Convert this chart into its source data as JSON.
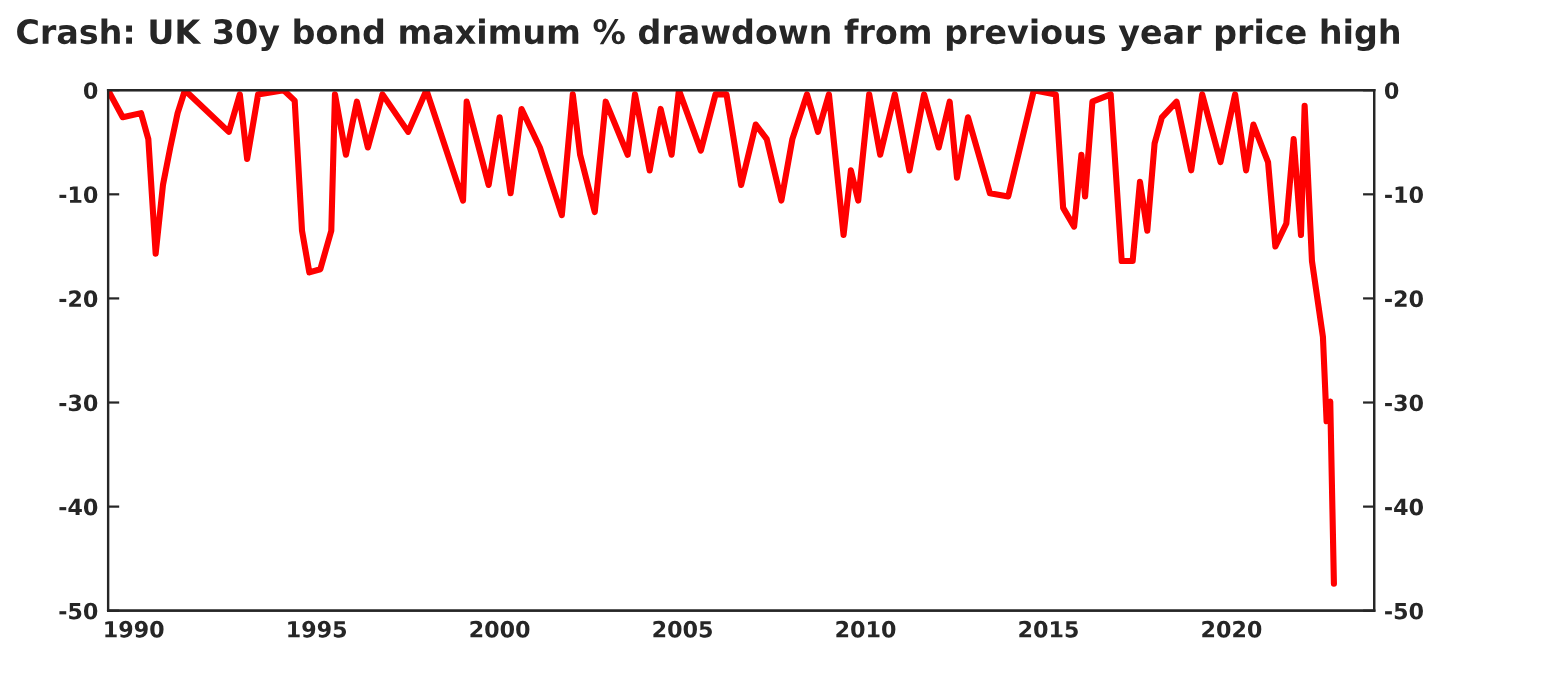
{
  "chart_data": {
    "type": "line",
    "title": "Crash: UK 30y bond maximum % drawdown from previous year price high",
    "xlim": [
      1989.3,
      2023.9
    ],
    "xticks": [
      1990,
      1995,
      2000,
      2005,
      2010,
      2015,
      2020
    ],
    "ylim": [
      -50,
      0
    ],
    "yticks": [
      0,
      -10,
      -20,
      -30,
      -40,
      -50
    ],
    "y2lim": [
      -50,
      0
    ],
    "y2ticks": [
      0,
      -10,
      -20,
      -30,
      -40,
      -50
    ],
    "grid": false,
    "ref_lines": [
      {
        "axis": "y",
        "value": 0,
        "color": "#b0b0b0"
      }
    ],
    "series": [
      {
        "color": "#ff0000",
        "x": [
          1989.3,
          1989.7,
          1990.2,
          1990.4,
          1990.6,
          1990.8,
          1991.0,
          1991.2,
          1991.4,
          1992.6,
          1992.9,
          1993.1,
          1993.4,
          1994.1,
          1994.4,
          1994.6,
          1994.8,
          1995.1,
          1995.4,
          1995.5,
          1995.8,
          1996.1,
          1996.4,
          1996.8,
          1997.5,
          1998.0,
          1999.0,
          1999.1,
          1999.7,
          2000.0,
          2000.3,
          2000.6,
          2001.1,
          2001.7,
          2002.0,
          2002.2,
          2002.6,
          2002.9,
          2003.5,
          2003.7,
          2004.1,
          2004.4,
          2004.7,
          2004.9,
          2005.5,
          2005.9,
          2006.2,
          2006.6,
          2007.0,
          2007.3,
          2007.7,
          2008.0,
          2008.4,
          2008.7,
          2009.0,
          2009.4,
          2009.6,
          2009.8,
          2010.1,
          2010.4,
          2010.8,
          2011.2,
          2011.6,
          2012.0,
          2012.3,
          2012.5,
          2012.8,
          2013.4,
          2013.9,
          2014.6,
          2015.2,
          2015.4,
          2015.7,
          2015.9,
          2016.0,
          2016.2,
          2016.7,
          2017.0,
          2017.3,
          2017.5,
          2017.7,
          2017.9,
          2018.1,
          2018.5,
          2018.9,
          2019.2,
          2019.7,
          2020.1,
          2020.4,
          2020.6,
          2021.0,
          2021.2,
          2021.5,
          2021.7,
          2021.9,
          2022.0,
          2022.2,
          2022.5,
          2022.6,
          2022.7,
          2022.8
        ],
        "values": [
          0,
          -2.6,
          -2.2,
          -4.7,
          -15.7,
          -9.1,
          -5.5,
          -2.2,
          0,
          -4,
          -0.4,
          -6.6,
          -0.4,
          0,
          -1,
          -13.5,
          -17.5,
          -17.2,
          -13.5,
          -0.4,
          -6.2,
          -1.1,
          -5.5,
          -0.4,
          -4,
          0,
          -10.6,
          -1.1,
          -9.1,
          -2.6,
          -9.9,
          -1.8,
          -5.5,
          -12,
          -0.4,
          -6.2,
          -11.7,
          -1.1,
          -6.2,
          -0.4,
          -7.7,
          -1.8,
          -6.2,
          0,
          -5.8,
          -0.4,
          -0.4,
          -9.1,
          -3.3,
          -4.7,
          -10.6,
          -4.7,
          -0.4,
          -4,
          -0.4,
          -13.9,
          -7.7,
          -10.6,
          -0.4,
          -6.2,
          -0.4,
          -7.7,
          -0.4,
          -5.5,
          -1.1,
          -8.4,
          -2.6,
          -9.9,
          -10.2,
          0,
          -0.4,
          -11.3,
          -13.1,
          -6.2,
          -10.2,
          -1.1,
          -0.4,
          -16.4,
          -16.4,
          -8.8,
          -13.5,
          -5.1,
          -2.6,
          -1.1,
          -7.7,
          -0.4,
          -6.9,
          -0.4,
          -7.7,
          -3.3,
          -6.9,
          -15,
          -12.8,
          -4.7,
          -13.9,
          -1.5,
          -16.4,
          -23.7,
          -31.8,
          -29.9,
          -47.4
        ]
      }
    ]
  }
}
